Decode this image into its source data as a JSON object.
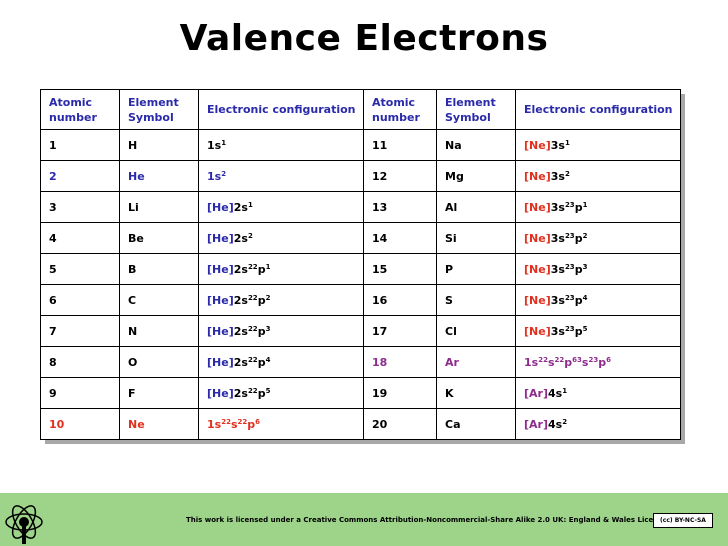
{
  "title": "Valence Electrons",
  "headers": {
    "atomic_number": "Atomic number",
    "element_symbol": "Element Symbol",
    "electronic_configuration_1": "Electronic configuration",
    "atomic_number_2": "Atomic number",
    "element_symbol_2": "Element Symbol",
    "electronic_configuration_2": "Electronic configuration"
  },
  "rows": [
    {
      "n1": "1",
      "s1": "H",
      "c1": "1s1",
      "n2": "11",
      "s2": "Na",
      "c2": "[Ne]3s1"
    },
    {
      "n1": "2",
      "s1": "He",
      "c1": "1s2",
      "n2": "12",
      "s2": "Mg",
      "c2": "[Ne]3s2"
    },
    {
      "n1": "3",
      "s1": "Li",
      "c1": "[He]2s1",
      "n2": "13",
      "s2": "Al",
      "c2": "[Ne]3s23p1"
    },
    {
      "n1": "4",
      "s1": "Be",
      "c1": "[He]2s2",
      "n2": "14",
      "s2": "Si",
      "c2": "[Ne]3s23p2"
    },
    {
      "n1": "5",
      "s1": "B",
      "c1": "[He]2s22p1",
      "n2": "15",
      "s2": "P",
      "c2": "[Ne]3s23p3"
    },
    {
      "n1": "6",
      "s1": "C",
      "c1": "[He]2s22p2",
      "n2": "16",
      "s2": "S",
      "c2": "[Ne]3s23p4"
    },
    {
      "n1": "7",
      "s1": "N",
      "c1": "[He]2s22p3",
      "n2": "17",
      "s2": "Cl",
      "c2": "[Ne]3s23p5"
    },
    {
      "n1": "8",
      "s1": "O",
      "c1": "[He]2s22p4",
      "n2": "18",
      "s2": "Ar",
      "c2": "1s22s22p63s23p6"
    },
    {
      "n1": "9",
      "s1": "F",
      "c1": "[He]2s22p5",
      "n2": "19",
      "s2": "K",
      "c2": "[Ar]4s1"
    },
    {
      "n1": "10",
      "s1": "Ne",
      "c1": "1s22s22p6",
      "n2": "20",
      "s2": "Ca",
      "c2": "[Ar]4s2"
    }
  ],
  "footer": {
    "license_text": "This work is licensed under a Creative Commons Attribution-Noncommercial-Share Alike 2.0 UK: England & Wales License",
    "cc_badge": "(cc) BY-NC-SA"
  },
  "colors": {
    "header_text": "#2a2aaa",
    "noble_gas_he": "#2a2aaa",
    "noble_gas_ne": "#e0301e",
    "noble_gas_ar": "#8e2c8e",
    "footer_bg": "#9dd48a"
  }
}
